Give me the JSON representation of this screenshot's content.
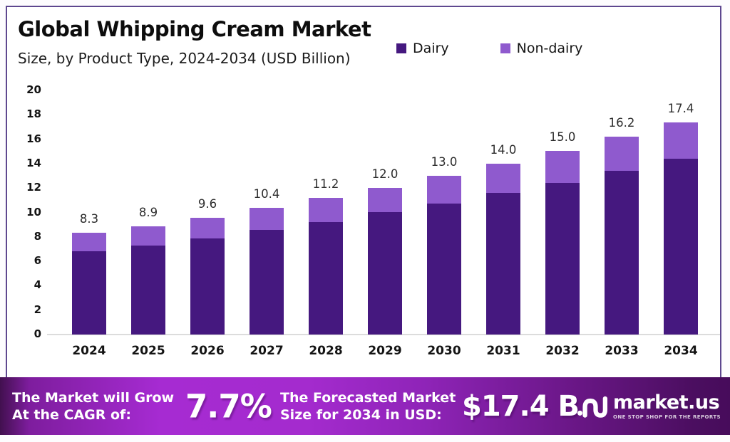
{
  "header": {
    "title": "Global Whipping Cream Market",
    "subtitle": "Size, by Product Type, 2024-2034 (USD Billion)"
  },
  "legend": [
    {
      "label": "Dairy",
      "color": "#45187f"
    },
    {
      "label": "Non-dairy",
      "color": "#8f5ace"
    }
  ],
  "chart_data": {
    "type": "bar",
    "stacked": true,
    "title": "Global Whipping Cream Market Size, by Product Type, 2024-2034 (USD Billion)",
    "categories": [
      "2024",
      "2025",
      "2026",
      "2027",
      "2028",
      "2029",
      "2030",
      "2031",
      "2032",
      "2033",
      "2034"
    ],
    "series": [
      {
        "name": "Dairy",
        "color": "#45187f",
        "values": [
          6.8,
          7.3,
          7.9,
          8.6,
          9.2,
          10.0,
          10.7,
          11.6,
          12.4,
          13.4,
          14.4
        ]
      },
      {
        "name": "Non-dairy",
        "color": "#8f5ace",
        "values": [
          1.5,
          1.6,
          1.7,
          1.8,
          2.0,
          2.0,
          2.3,
          2.4,
          2.6,
          2.8,
          3.0
        ]
      }
    ],
    "totals": [
      8.3,
      8.9,
      9.6,
      10.4,
      11.2,
      12.0,
      13.0,
      14.0,
      15.0,
      16.2,
      17.4
    ],
    "total_labels": [
      "8.3",
      "8.9",
      "9.6",
      "10.4",
      "11.2",
      "12.0",
      "13.0",
      "14.0",
      "15.0",
      "16.2",
      "17.4"
    ],
    "xlabel": "",
    "ylabel": "",
    "ylim": [
      0,
      20
    ],
    "ytick_step": 2,
    "grid": false,
    "legend_position": "top-right"
  },
  "footer": {
    "cagr_label_line1": "The Market will Grow",
    "cagr_label_line2": "At the CAGR of:",
    "cagr_value": "7.7%",
    "forecast_label_line1": "The Forecasted Market",
    "forecast_label_line2": "Size for 2034 in USD:",
    "forecast_value": "$17.4 B",
    "brand": "market.us",
    "brand_tagline": "ONE STOP SHOP FOR THE REPORTS"
  },
  "colors": {
    "frame_border": "#5e478f",
    "axis_line": "#dcdcdc",
    "banner_left": "#a62bd2",
    "banner_right": "#470c5b",
    "label_text": "#2d2d2d"
  }
}
